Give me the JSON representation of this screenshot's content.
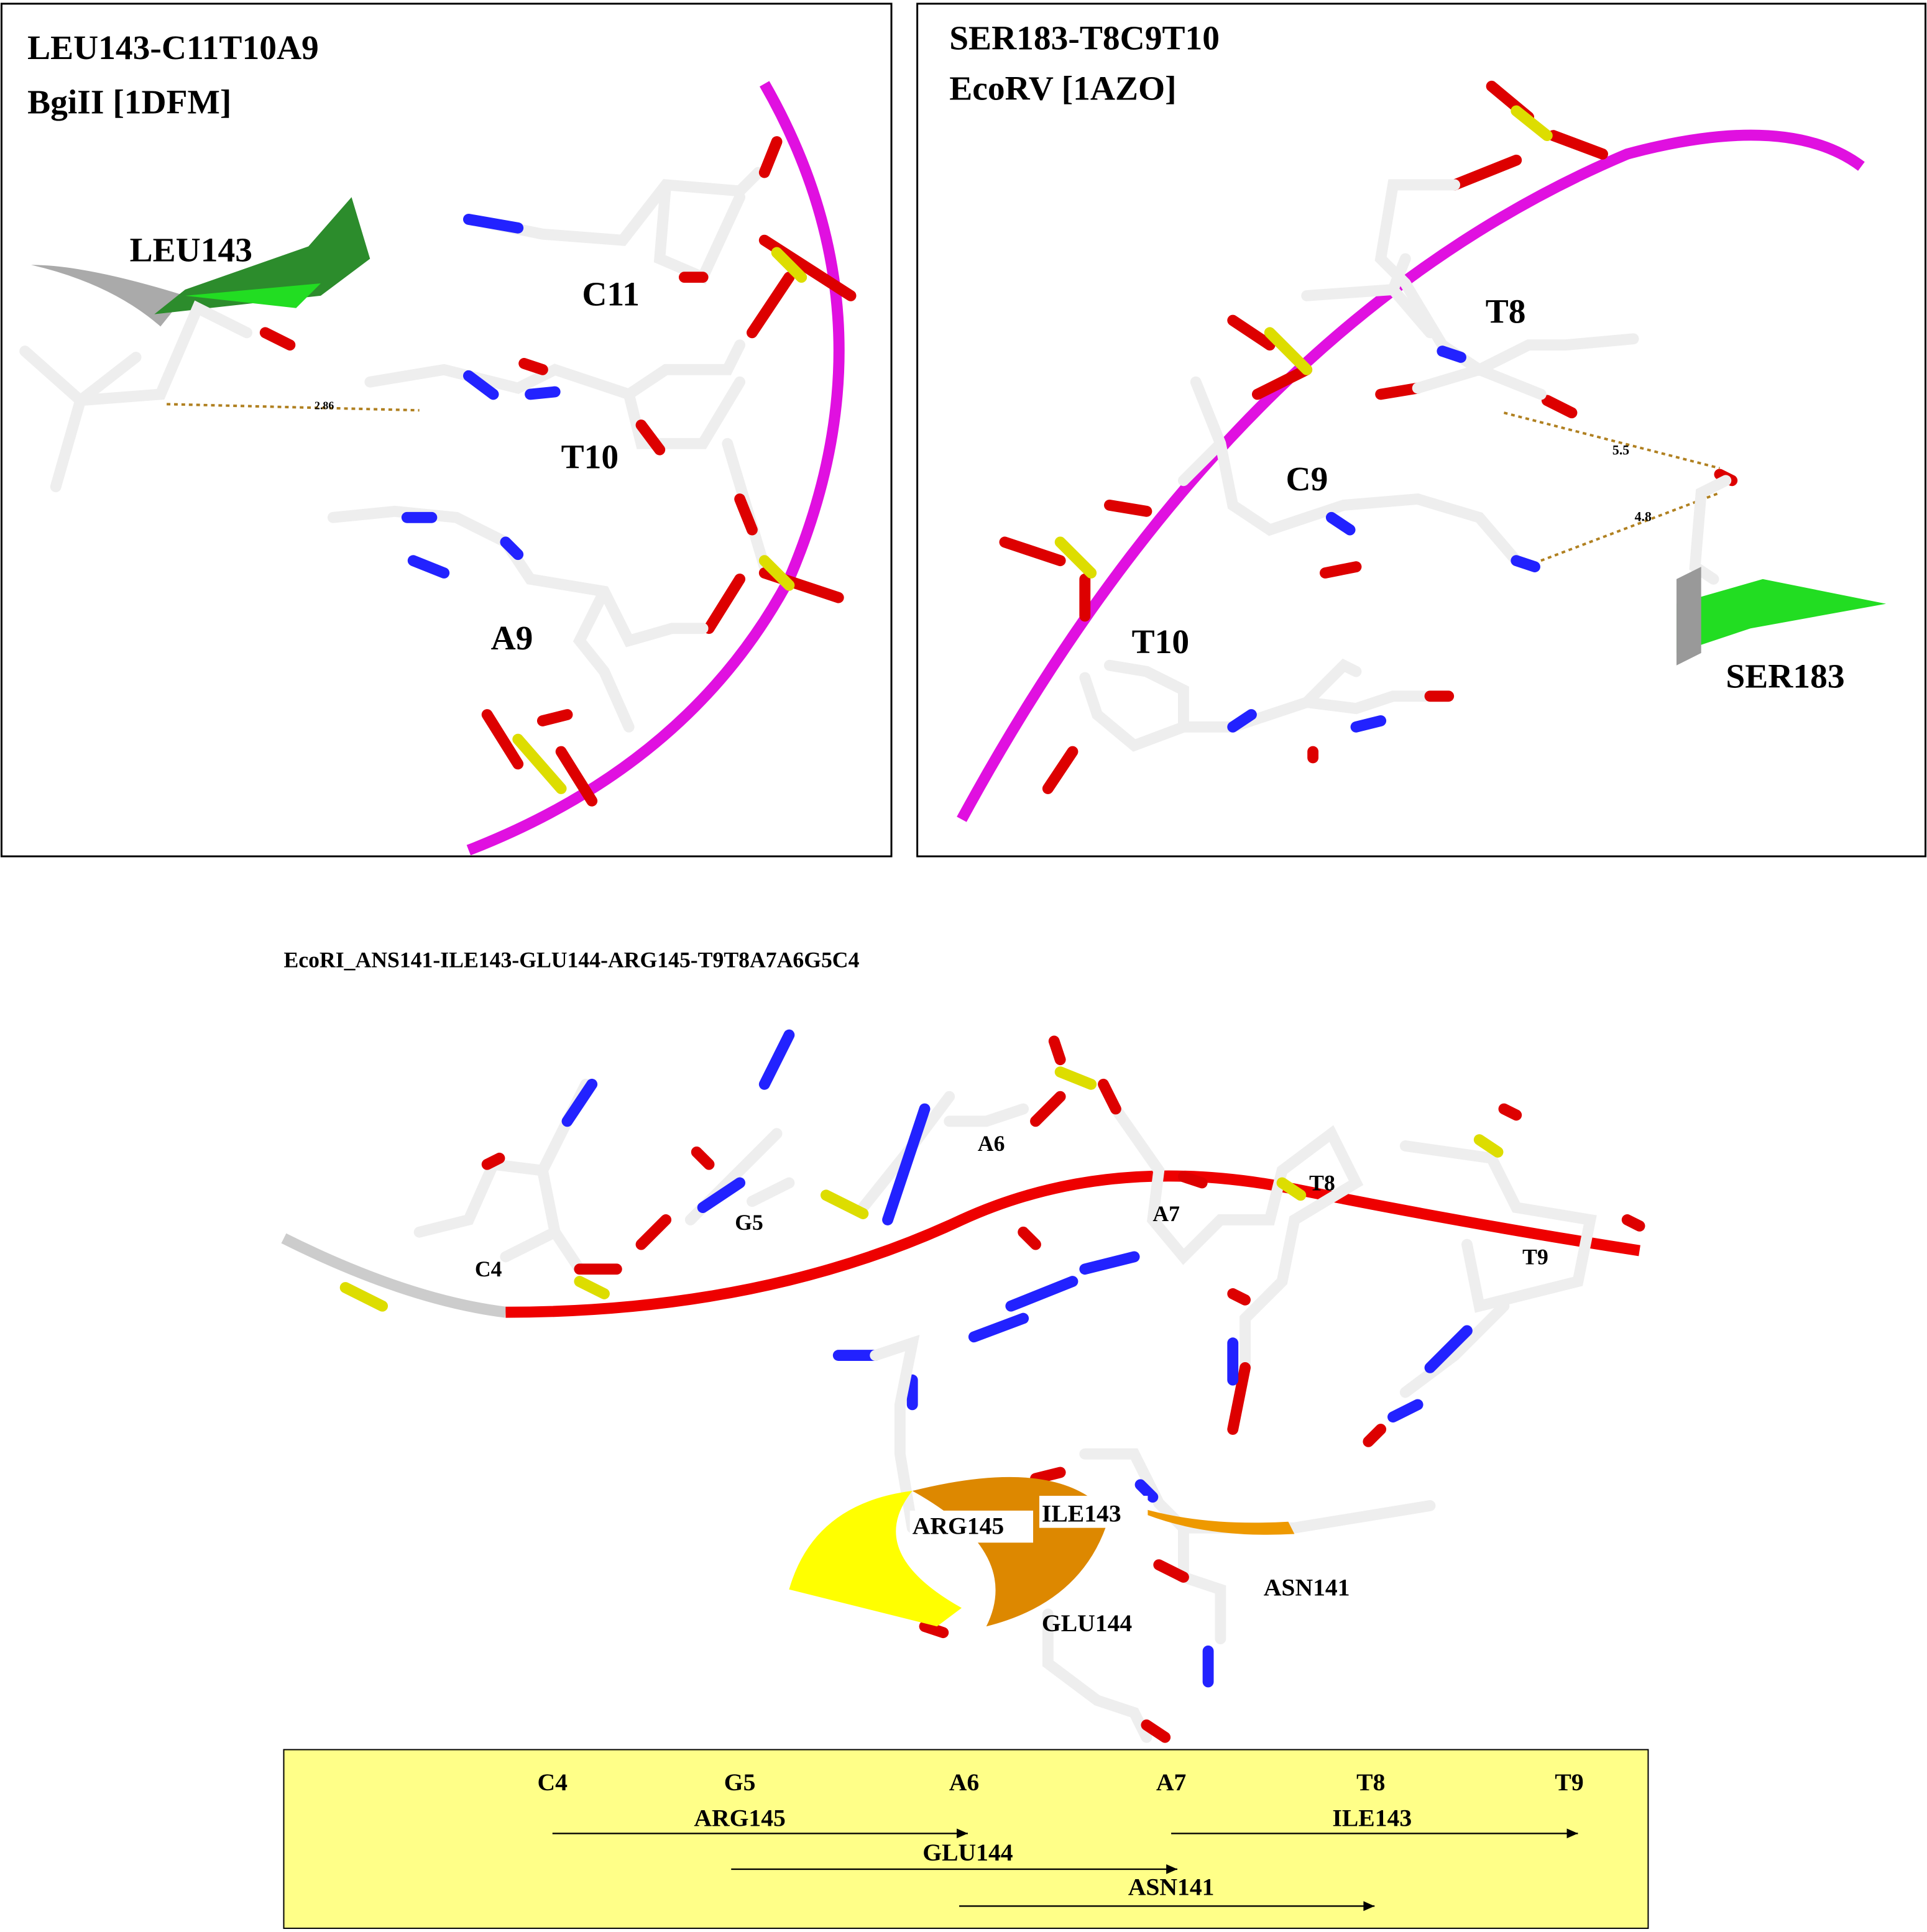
{
  "panels": [
    {
      "title": [
        "LEU143-C11T10A9",
        "BgiII [1DFM]"
      ],
      "labels": [
        "LEU143",
        "C11",
        "T10",
        "A9"
      ],
      "distances": [
        "2.86"
      ]
    },
    {
      "title": [
        "SER183-T8C9T10",
        "EcoRV [1AZO]"
      ],
      "labels": [
        "T8",
        "C9",
        "T10",
        "SER183"
      ],
      "distances": [
        "5.5",
        "4.8"
      ]
    }
  ],
  "bottom": {
    "title": "EcoRI_ANS141-ILE143-GLU144-ARG145-T9T8A7A6G5C4",
    "labels": [
      "A6",
      "T8",
      "G5",
      "A7",
      "C4",
      "T9",
      "ARG145",
      "ILE143",
      "ASN141",
      "GLU144"
    ],
    "table": {
      "columns": [
        "C4",
        "G5",
        "A6",
        "A7",
        "T8",
        "T9"
      ],
      "arrows": [
        "ARG145",
        "ILE143",
        "GLU144",
        "ASN141"
      ]
    }
  }
}
